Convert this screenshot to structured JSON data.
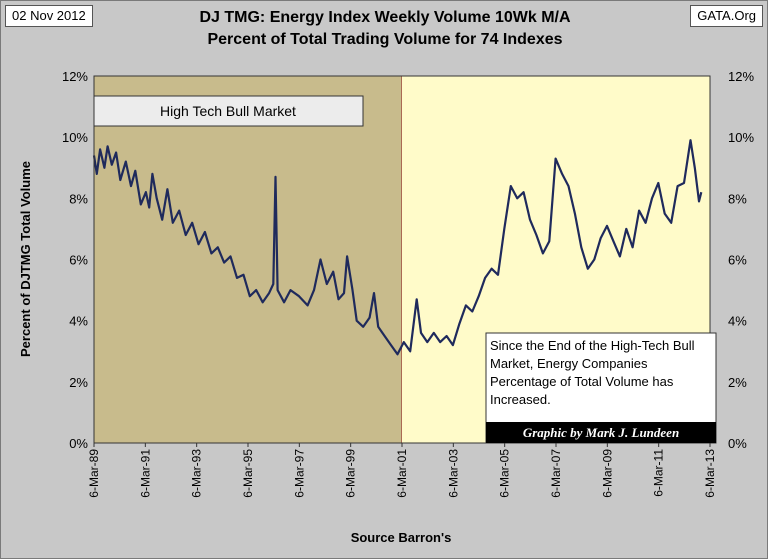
{
  "header": {
    "date": "02 Nov 2012",
    "source_tag": "GATA.Org",
    "title_line1": "DJ TMG: Energy Index Weekly Volume 10Wk M/A",
    "title_line2": "Percent of Total Trading Volume for 74 Indexes"
  },
  "chart_data": {
    "type": "line",
    "title": "DJ TMG: Energy Index Weekly Volume 10Wk M/A Percent of Total Trading Volume for 74 Indexes",
    "xlabel": "Source Barron's",
    "ylabel": "Percent of DJTMG Total Volume",
    "ylim": [
      0,
      12
    ],
    "xlim": [
      "1989-03-06",
      "2013-03-06"
    ],
    "y_ticks": [
      "0%",
      "2%",
      "4%",
      "6%",
      "8%",
      "10%",
      "12%"
    ],
    "x_ticks": [
      "6-Mar-89",
      "6-Mar-91",
      "6-Mar-93",
      "6-Mar-95",
      "6-Mar-97",
      "6-Mar-99",
      "6-Mar-01",
      "6-Mar-03",
      "6-Mar-05",
      "6-Mar-07",
      "6-Mar-09",
      "6-Mar-11",
      "6-Mar-13"
    ],
    "grid": false,
    "series": [
      {
        "color": "#1f2a5c",
        "points": [
          [
            "1989-03-06",
            9.4
          ],
          [
            "1989-04-15",
            8.8
          ],
          [
            "1989-06-01",
            9.6
          ],
          [
            "1989-08-01",
            9.0
          ],
          [
            "1989-09-15",
            9.7
          ],
          [
            "1989-11-15",
            9.1
          ],
          [
            "1990-01-15",
            9.5
          ],
          [
            "1990-03-15",
            8.6
          ],
          [
            "1990-06-01",
            9.2
          ],
          [
            "1990-08-15",
            8.4
          ],
          [
            "1990-10-15",
            8.9
          ],
          [
            "1991-01-01",
            7.8
          ],
          [
            "1991-03-15",
            8.2
          ],
          [
            "1991-05-01",
            7.7
          ],
          [
            "1991-06-15",
            8.8
          ],
          [
            "1991-08-15",
            8.0
          ],
          [
            "1991-11-01",
            7.3
          ],
          [
            "1992-01-15",
            8.3
          ],
          [
            "1992-04-01",
            7.2
          ],
          [
            "1992-07-01",
            7.6
          ],
          [
            "1992-10-01",
            6.8
          ],
          [
            "1993-01-01",
            7.2
          ],
          [
            "1993-04-01",
            6.5
          ],
          [
            "1993-07-01",
            6.9
          ],
          [
            "1993-10-01",
            6.2
          ],
          [
            "1994-01-01",
            6.4
          ],
          [
            "1994-04-01",
            5.9
          ],
          [
            "1994-07-01",
            6.1
          ],
          [
            "1994-10-01",
            5.4
          ],
          [
            "1995-01-01",
            5.5
          ],
          [
            "1995-04-01",
            4.8
          ],
          [
            "1995-07-01",
            5.0
          ],
          [
            "1995-10-01",
            4.6
          ],
          [
            "1996-01-01",
            4.9
          ],
          [
            "1996-03-01",
            5.2
          ],
          [
            "1996-04-01",
            8.7
          ],
          [
            "1996-05-01",
            5.0
          ],
          [
            "1996-08-01",
            4.6
          ],
          [
            "1996-11-01",
            5.0
          ],
          [
            "1997-03-01",
            4.8
          ],
          [
            "1997-07-01",
            4.5
          ],
          [
            "1997-10-01",
            5.0
          ],
          [
            "1998-01-01",
            6.0
          ],
          [
            "1998-04-01",
            5.2
          ],
          [
            "1998-07-01",
            5.6
          ],
          [
            "1998-09-15",
            4.7
          ],
          [
            "1998-12-01",
            4.9
          ],
          [
            "1999-01-15",
            6.1
          ],
          [
            "1999-04-01",
            5.0
          ],
          [
            "1999-06-01",
            4.0
          ],
          [
            "1999-09-01",
            3.8
          ],
          [
            "1999-12-01",
            4.1
          ],
          [
            "2000-02-01",
            4.9
          ],
          [
            "2000-04-01",
            3.8
          ],
          [
            "2000-07-01",
            3.5
          ],
          [
            "2000-10-01",
            3.2
          ],
          [
            "2001-01-01",
            2.9
          ],
          [
            "2001-04-01",
            3.3
          ],
          [
            "2001-07-01",
            3.0
          ],
          [
            "2001-10-01",
            4.7
          ],
          [
            "2001-12-01",
            3.6
          ],
          [
            "2002-03-01",
            3.3
          ],
          [
            "2002-06-01",
            3.6
          ],
          [
            "2002-09-01",
            3.3
          ],
          [
            "2002-12-01",
            3.5
          ],
          [
            "2003-03-01",
            3.2
          ],
          [
            "2003-06-01",
            3.9
          ],
          [
            "2003-09-01",
            4.5
          ],
          [
            "2003-12-01",
            4.3
          ],
          [
            "2004-03-01",
            4.8
          ],
          [
            "2004-06-01",
            5.4
          ],
          [
            "2004-09-01",
            5.7
          ],
          [
            "2004-12-01",
            5.5
          ],
          [
            "2005-03-01",
            7.0
          ],
          [
            "2005-06-01",
            8.4
          ],
          [
            "2005-09-01",
            8.0
          ],
          [
            "2005-12-01",
            8.2
          ],
          [
            "2006-03-01",
            7.3
          ],
          [
            "2006-06-01",
            6.8
          ],
          [
            "2006-09-01",
            6.2
          ],
          [
            "2006-12-01",
            6.6
          ],
          [
            "2007-03-01",
            9.3
          ],
          [
            "2007-06-01",
            8.8
          ],
          [
            "2007-09-01",
            8.4
          ],
          [
            "2007-12-01",
            7.5
          ],
          [
            "2008-03-01",
            6.4
          ],
          [
            "2008-06-01",
            5.7
          ],
          [
            "2008-09-01",
            6.0
          ],
          [
            "2008-12-01",
            6.7
          ],
          [
            "2009-03-01",
            7.1
          ],
          [
            "2009-06-01",
            6.6
          ],
          [
            "2009-09-01",
            6.1
          ],
          [
            "2009-12-01",
            7.0
          ],
          [
            "2010-03-01",
            6.4
          ],
          [
            "2010-06-01",
            7.6
          ],
          [
            "2010-09-01",
            7.2
          ],
          [
            "2010-12-01",
            8.0
          ],
          [
            "2011-03-01",
            8.5
          ],
          [
            "2011-06-01",
            7.5
          ],
          [
            "2011-09-01",
            7.2
          ],
          [
            "2011-12-01",
            8.4
          ],
          [
            "2012-03-01",
            8.5
          ],
          [
            "2012-06-01",
            9.9
          ],
          [
            "2012-08-01",
            9.0
          ],
          [
            "2012-10-01",
            7.9
          ],
          [
            "2012-11-02",
            8.2
          ]
        ]
      }
    ],
    "regions": [
      {
        "label": "High Tech Bull Market",
        "from": "1989-03-06",
        "to": "2001-03-06",
        "color": "#c8bb8c"
      },
      {
        "label": "",
        "from": "2001-03-06",
        "to": "2013-03-06",
        "color": "#fffbc9"
      }
    ],
    "annotations": {
      "note": "Since the End of the High-Tech Bull Market, Energy Companies Percentage of Total Volume has Increased.",
      "credit": "Graphic by Mark J. Lundeen"
    }
  }
}
